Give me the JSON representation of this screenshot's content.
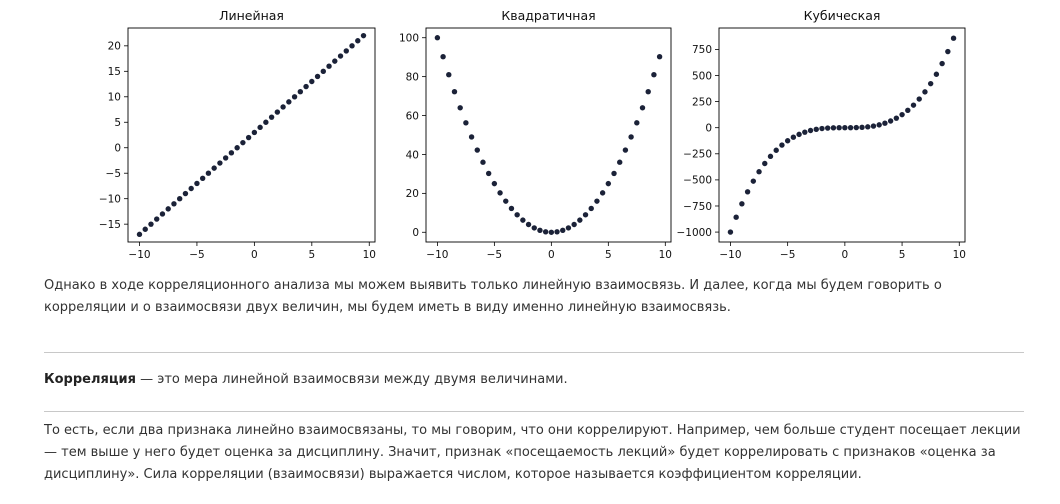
{
  "chart_data": [
    {
      "type": "scatter",
      "title": "Линейная",
      "x": [
        -10,
        -9.5,
        -9,
        -8.5,
        -8,
        -7.5,
        -7,
        -6.5,
        -6,
        -5.5,
        -5,
        -4.5,
        -4,
        -3.5,
        -3,
        -2.5,
        -2,
        -1.5,
        -1,
        -0.5,
        0,
        0.5,
        1,
        1.5,
        2,
        2.5,
        3,
        3.5,
        4,
        4.5,
        5,
        5.5,
        6,
        6.5,
        7,
        7.5,
        8,
        8.5,
        9,
        9.5
      ],
      "y": [
        -17,
        -16,
        -15,
        -14,
        -13,
        -12,
        -11,
        -10,
        -9,
        -8,
        -7,
        -6,
        -5,
        -4,
        -3,
        -2,
        -1,
        0,
        1,
        2,
        3,
        4,
        5,
        6,
        7,
        8,
        9,
        10,
        11,
        12,
        13,
        14,
        15,
        16,
        17,
        18,
        19,
        20,
        21,
        22
      ],
      "xlim": [
        -11,
        10.5
      ],
      "ylim": [
        -18.5,
        23.5
      ],
      "xticks": [
        -10,
        -5,
        0,
        5,
        10
      ],
      "yticks": [
        -15,
        -10,
        -5,
        0,
        5,
        10,
        15,
        20
      ],
      "xticklabels": [
        "−10",
        "−5",
        "0",
        "5",
        "10"
      ],
      "yticklabels": [
        "−15",
        "−10",
        "−5",
        "0",
        "5",
        "10",
        "15",
        "20"
      ],
      "grid": false
    },
    {
      "type": "scatter",
      "title": "Квадратичная",
      "x": [
        -10,
        -9.5,
        -9,
        -8.5,
        -8,
        -7.5,
        -7,
        -6.5,
        -6,
        -5.5,
        -5,
        -4.5,
        -4,
        -3.5,
        -3,
        -2.5,
        -2,
        -1.5,
        -1,
        -0.5,
        0,
        0.5,
        1,
        1.5,
        2,
        2.5,
        3,
        3.5,
        4,
        4.5,
        5,
        5.5,
        6,
        6.5,
        7,
        7.5,
        8,
        8.5,
        9,
        9.5
      ],
      "y": [
        100,
        90.25,
        81,
        72.25,
        64,
        56.25,
        49,
        42.25,
        36,
        30.25,
        25,
        20.25,
        16,
        12.25,
        9,
        6.25,
        4,
        2.25,
        1,
        0.25,
        0,
        0.25,
        1,
        2.25,
        4,
        6.25,
        9,
        12.25,
        16,
        20.25,
        25,
        30.25,
        36,
        42.25,
        49,
        56.25,
        64,
        72.25,
        81,
        90.25
      ],
      "xlim": [
        -11,
        10.5
      ],
      "ylim": [
        -5,
        105
      ],
      "xticks": [
        -10,
        -5,
        0,
        5,
        10
      ],
      "yticks": [
        0,
        20,
        40,
        60,
        80,
        100
      ],
      "xticklabels": [
        "−10",
        "−5",
        "0",
        "5",
        "10"
      ],
      "yticklabels": [
        "0",
        "20",
        "40",
        "60",
        "80",
        "100"
      ],
      "grid": false
    },
    {
      "type": "scatter",
      "title": "Кубическая",
      "x": [
        -10,
        -9.5,
        -9,
        -8.5,
        -8,
        -7.5,
        -7,
        -6.5,
        -6,
        -5.5,
        -5,
        -4.5,
        -4,
        -3.5,
        -3,
        -2.5,
        -2,
        -1.5,
        -1,
        -0.5,
        0,
        0.5,
        1,
        1.5,
        2,
        2.5,
        3,
        3.5,
        4,
        4.5,
        5,
        5.5,
        6,
        6.5,
        7,
        7.5,
        8,
        8.5,
        9,
        9.5
      ],
      "y": [
        -1000,
        -857.4,
        -729,
        -614.1,
        -512,
        -421.9,
        -343,
        -274.6,
        -216,
        -166.4,
        -125,
        -91.1,
        -64,
        -42.9,
        -27,
        -15.6,
        -8,
        -3.4,
        -1,
        -0.1,
        0,
        0.1,
        1,
        3.4,
        8,
        15.6,
        27,
        42.9,
        64,
        91.1,
        125,
        166.4,
        216,
        274.6,
        343,
        421.9,
        512,
        614.1,
        729,
        857.4
      ],
      "xlim": [
        -11,
        10.5
      ],
      "ylim": [
        -1095,
        955
      ],
      "xticks": [
        -10,
        -5,
        0,
        5,
        10
      ],
      "yticks": [
        -1000,
        -750,
        -500,
        -250,
        0,
        250,
        500,
        750
      ],
      "xticklabels": [
        "−10",
        "−5",
        "0",
        "5",
        "10"
      ],
      "yticklabels": [
        "−1000",
        "−750",
        "−500",
        "−250",
        "0",
        "250",
        "500",
        "750"
      ],
      "grid": false
    }
  ],
  "colors": {
    "marker": "#1b2238",
    "text": "#333333",
    "rule": "#c8c8c8"
  },
  "text": {
    "para1": "Однако в ходе корреляционного анализа мы можем выявить только линейную взаимосвязь. И далее, когда мы будем говорить о корреляции и о взаимосвязи двух величин, мы будем иметь в виду именно линейную взаимосвязь.",
    "def_term": "Корреляция",
    "def_rest": " — это мера линейной взаимосвязи между двумя величинами.",
    "para2": "То есть, если два признака линейно взаимосвязаны, то мы говорим, что они коррелируют. Например, чем больше студент посещает лекции — тем выше у него будет оценка за дисциплину. Значит, признак «посещаемость лекций» будет коррелировать с признаков «оценка за дисциплину». Сила корреляции (взаимосвязи) выражается числом, которое называется коэффициентом корреляции."
  }
}
